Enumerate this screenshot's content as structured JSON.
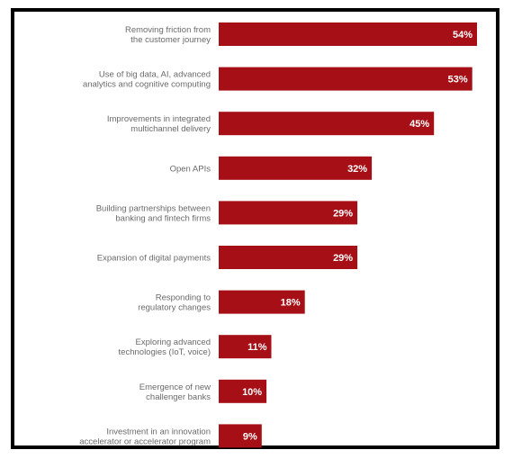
{
  "chart_data": {
    "type": "bar",
    "orientation": "horizontal",
    "title": "",
    "xlabel": "",
    "ylabel": "",
    "bar_color": "#a50f15",
    "value_suffix": "%",
    "xlim": [
      0,
      60
    ],
    "grid": false,
    "legend": "none",
    "categories": [
      [
        "Removing friction from",
        "the customer journey"
      ],
      [
        "Use of big data, AI, advanced",
        "analytics and cognitive computing"
      ],
      [
        "Improvements in integrated",
        "multichannel delivery"
      ],
      [
        "Open APIs"
      ],
      [
        "Building partnerships between",
        "banking and fintech firms"
      ],
      [
        "Expansion of digital payments"
      ],
      [
        "Responding to",
        "regulatory changes"
      ],
      [
        "Exploring advanced",
        "technologies (IoT, voice)"
      ],
      [
        "Emergence of new",
        "challenger banks"
      ],
      [
        "Investment in an innovation",
        "accelerator or accelerator program"
      ]
    ],
    "values": [
      54,
      53,
      45,
      32,
      29,
      29,
      18,
      11,
      10,
      9
    ],
    "value_labels": [
      "54%",
      "53%",
      "45%",
      "32%",
      "29%",
      "29%",
      "18%",
      "11%",
      "10%",
      "9%"
    ]
  }
}
